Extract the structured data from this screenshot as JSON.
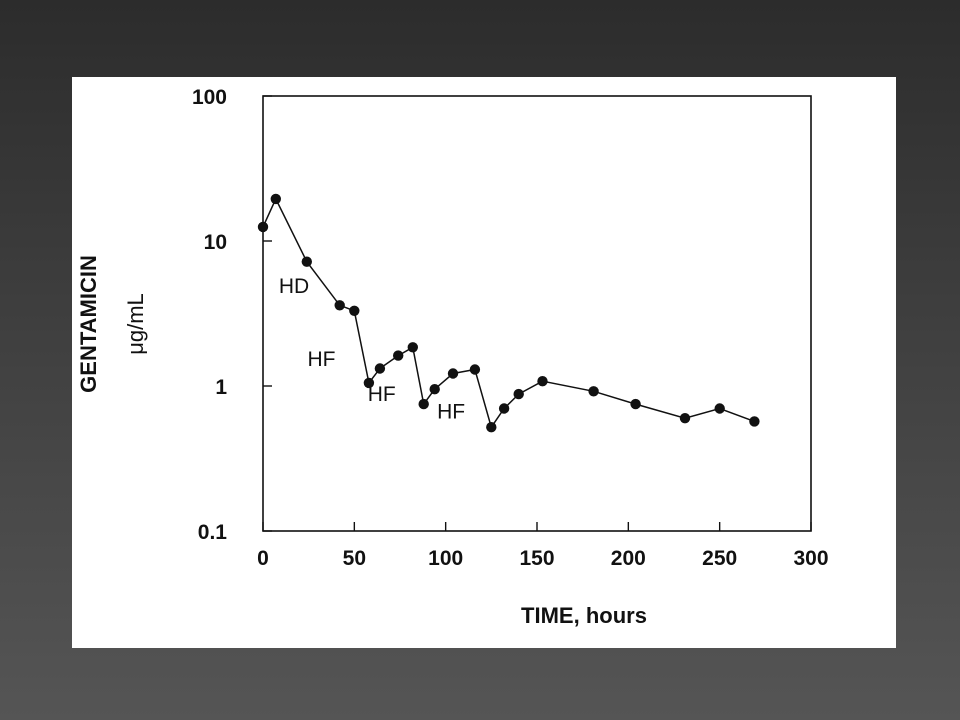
{
  "chart_data": {
    "type": "line",
    "title": "",
    "xlabel": "TIME, hours",
    "ylabel": "GENTAMICIN",
    "ylabel_unit": "μg/mL",
    "xscale": "linear",
    "yscale": "log",
    "xlim": [
      0,
      300
    ],
    "ylim": [
      0.1,
      100
    ],
    "x_ticks": [
      0,
      50,
      100,
      150,
      200,
      250,
      300
    ],
    "y_ticks": [
      100,
      10,
      1,
      0.1
    ],
    "grid": false,
    "legend": "none",
    "series": [
      {
        "x": [
          0,
          7,
          24,
          42,
          50,
          58,
          64,
          74,
          82,
          88,
          94,
          104,
          116,
          125,
          132,
          140,
          153,
          181,
          204,
          231,
          250,
          269
        ],
        "y": [
          12.5,
          19.5,
          7.2,
          3.6,
          3.3,
          1.05,
          1.32,
          1.62,
          1.85,
          0.75,
          0.95,
          1.22,
          1.3,
          0.52,
          0.7,
          0.88,
          1.08,
          0.92,
          0.75,
          0.6,
          0.7,
          0.57
        ]
      }
    ],
    "annotations": [
      {
        "text": "HD",
        "x": 17,
        "y": 4.8
      },
      {
        "text": "HF",
        "x": 32,
        "y": 1.5
      },
      {
        "text": "HF",
        "x": 65,
        "y": 0.86
      },
      {
        "text": "HF",
        "x": 103,
        "y": 0.65
      }
    ],
    "colors": {
      "line": "#111111",
      "marker": "#111111",
      "axes": "#111111"
    }
  }
}
